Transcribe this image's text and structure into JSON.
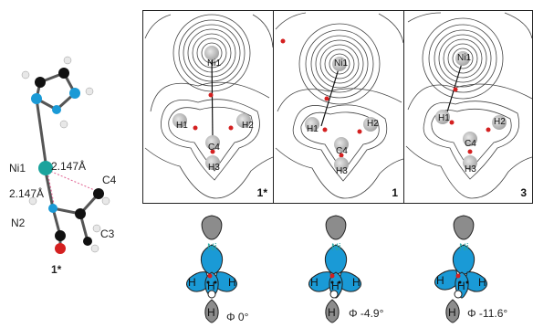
{
  "molecule": {
    "compound_label": "1*",
    "ni_label": "Ni1",
    "n_label": "N2",
    "c4_label": "C4",
    "c3_label": "C3",
    "dist_top": "2.147Å",
    "dist_bottom": "2.147Å"
  },
  "panels": [
    {
      "id": "1*",
      "ni": "Ni1",
      "h1": "H1",
      "h2": "H2",
      "c4": "C4",
      "h3": "H3"
    },
    {
      "id": "1",
      "ni": "Ni1",
      "h1": "H1",
      "h2": "H2",
      "c4": "C4",
      "h3": "H3"
    },
    {
      "id": "3",
      "ni": "Ni1",
      "h1": "H1",
      "h2": "H2",
      "c4": "C4",
      "h3": "H3"
    }
  ],
  "orbitals": [
    {
      "ni": "Ni",
      "h": "H",
      "phi": "Φ 0°"
    },
    {
      "ni": "Ni",
      "h": "H",
      "phi": "Φ -4.9°"
    },
    {
      "ni": "Ni",
      "h": "H",
      "phi": "Φ -11.6°"
    }
  ],
  "colors": {
    "blue": "#1a9ad6",
    "teal": "#2aa6a0",
    "grey": "#8c8c8c",
    "red": "#d42020",
    "black": "#111111"
  }
}
